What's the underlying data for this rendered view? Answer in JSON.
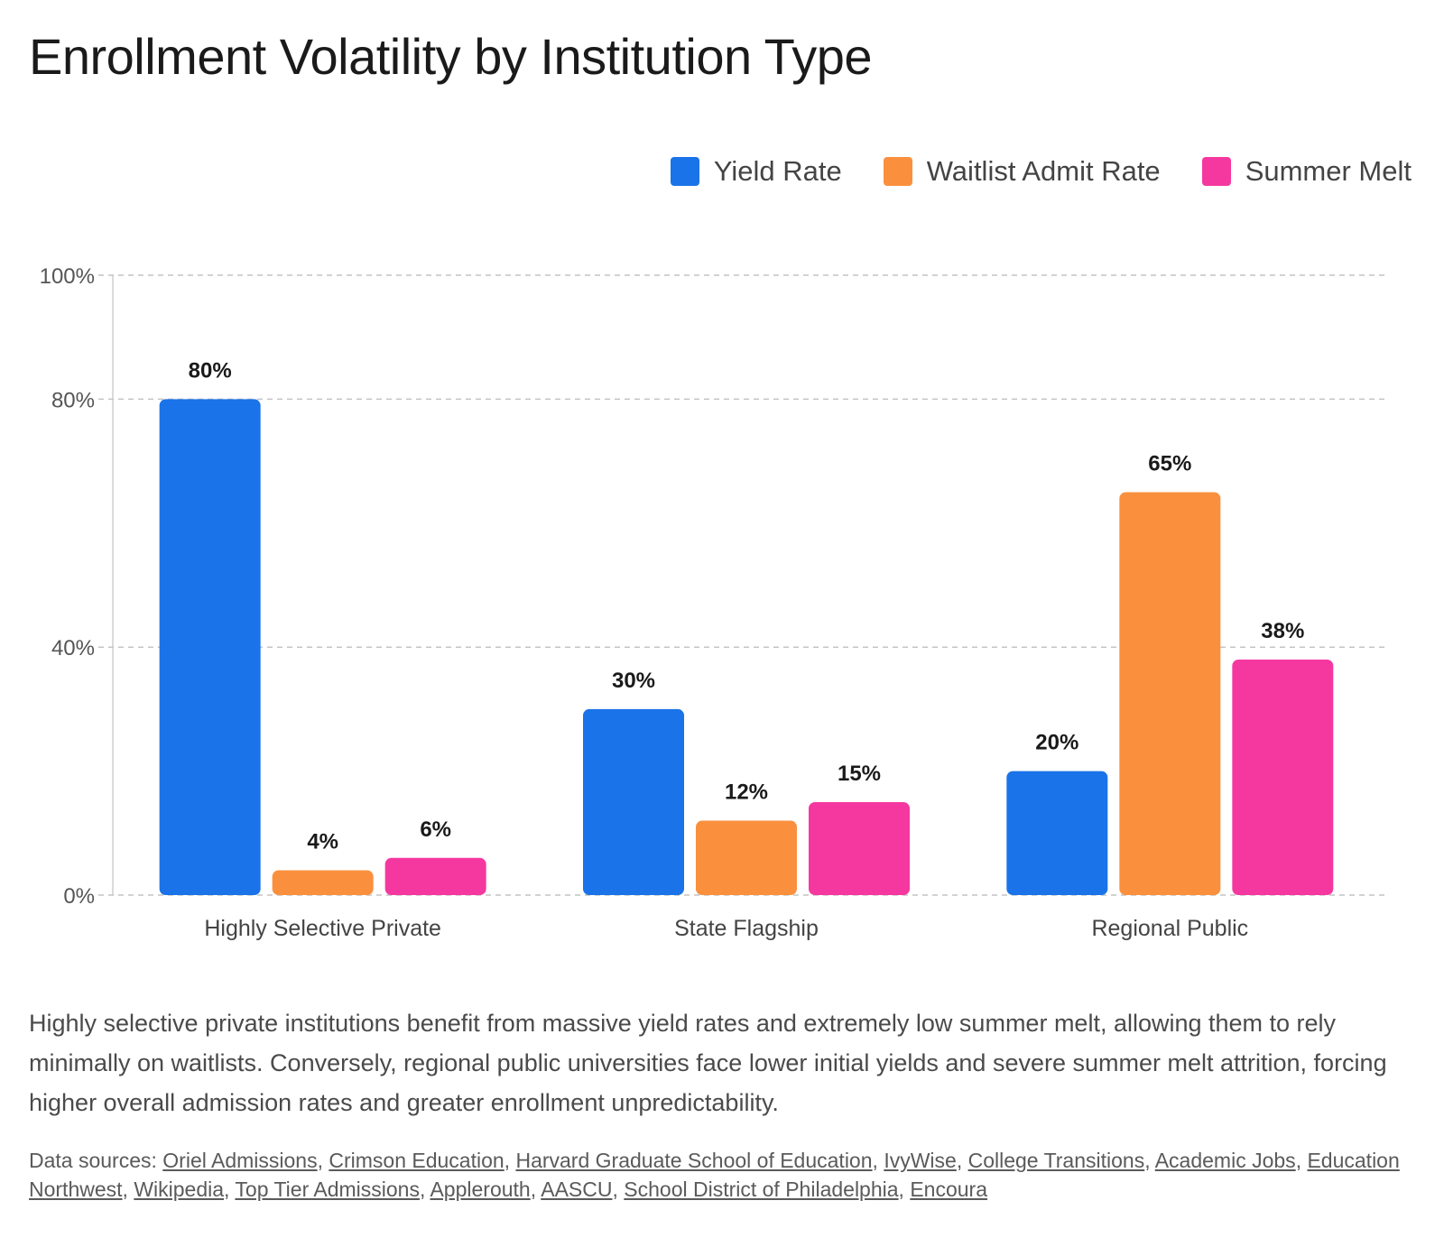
{
  "title": "Enrollment Volatility by Institution Type",
  "legend": [
    {
      "label": "Yield Rate",
      "color": "#1a73e8"
    },
    {
      "label": "Waitlist Admit Rate",
      "color": "#fa903e"
    },
    {
      "label": "Summer Melt",
      "color": "#f538a0"
    }
  ],
  "chart_data": {
    "type": "bar",
    "categories": [
      "Highly Selective Private",
      "State Flagship",
      "Regional Public"
    ],
    "series": [
      {
        "name": "Yield Rate",
        "color": "#1a73e8",
        "values": [
          80,
          30,
          20
        ]
      },
      {
        "name": "Waitlist Admit Rate",
        "color": "#fa903e",
        "values": [
          4,
          12,
          65
        ]
      },
      {
        "name": "Summer Melt",
        "color": "#f538a0",
        "values": [
          6,
          15,
          38
        ]
      }
    ],
    "y_ticks": [
      0,
      40,
      80,
      100
    ],
    "y_tick_labels": [
      "0%",
      "40%",
      "80%",
      "100%"
    ],
    "ylim": [
      0,
      100
    ],
    "value_suffix": "%",
    "grid": true,
    "legend_position": "top-right"
  },
  "summary": "Highly selective private institutions benefit from massive yield rates and extremely low summer melt, allowing them to rely minimally on waitlists. Conversely, regional public universities face lower initial yields and severe summer melt attrition, forcing higher overall admission rates and greater enrollment unpredictability.",
  "sources": {
    "label": "Data sources:",
    "links": [
      "Oriel Admissions",
      "Crimson Education",
      "Harvard Graduate School of Education",
      "IvyWise",
      "College Transitions",
      "Academic Jobs",
      "Education Northwest",
      "Wikipedia",
      "Top Tier Admissions",
      "Applerouth",
      "AASCU",
      "School District of Philadelphia",
      "Encoura"
    ]
  }
}
